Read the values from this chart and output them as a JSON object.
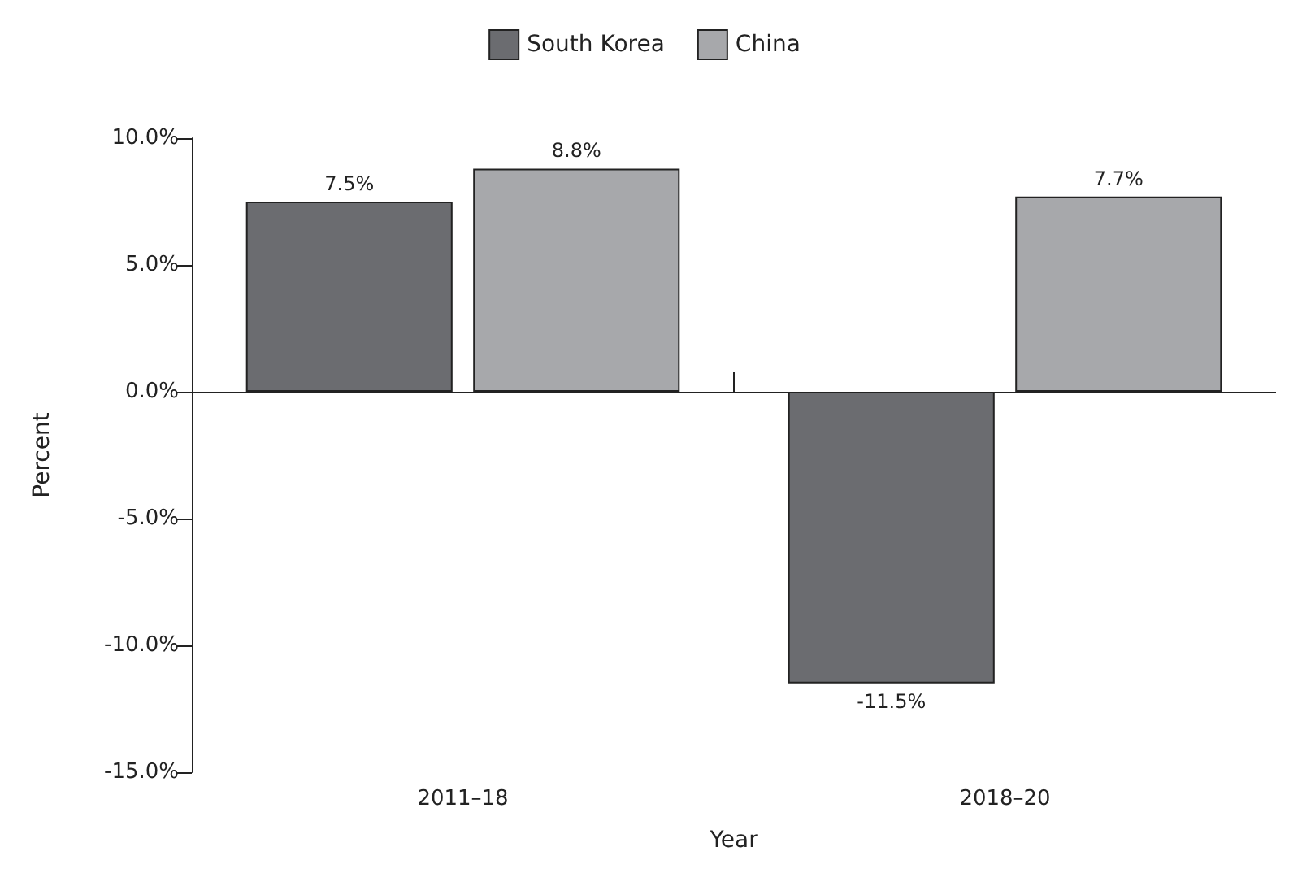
{
  "chart_data": {
    "type": "bar",
    "xlabel": "Year",
    "ylabel": "Percent",
    "categories": [
      "2011–18",
      "2018–20"
    ],
    "series": [
      {
        "name": "South Korea",
        "color": "#6b6c70",
        "values": [
          7.5,
          -11.5
        ],
        "value_labels": [
          "7.5%",
          "-11.5%"
        ]
      },
      {
        "name": "China",
        "color": "#a7a8ab",
        "values": [
          8.8,
          7.7
        ],
        "value_labels": [
          "8.8%",
          "7.7%"
        ]
      }
    ],
    "ylim": [
      -15,
      10
    ],
    "yticks": [
      {
        "value": -15,
        "label": "-15.0%"
      },
      {
        "value": -10,
        "label": "-10.0%"
      },
      {
        "value": -5,
        "label": "-5.0%"
      },
      {
        "value": 0,
        "label": "0.0%"
      },
      {
        "value": 5,
        "label": "5.0%"
      },
      {
        "value": 10,
        "label": "10.0%"
      }
    ],
    "legend": "top"
  }
}
